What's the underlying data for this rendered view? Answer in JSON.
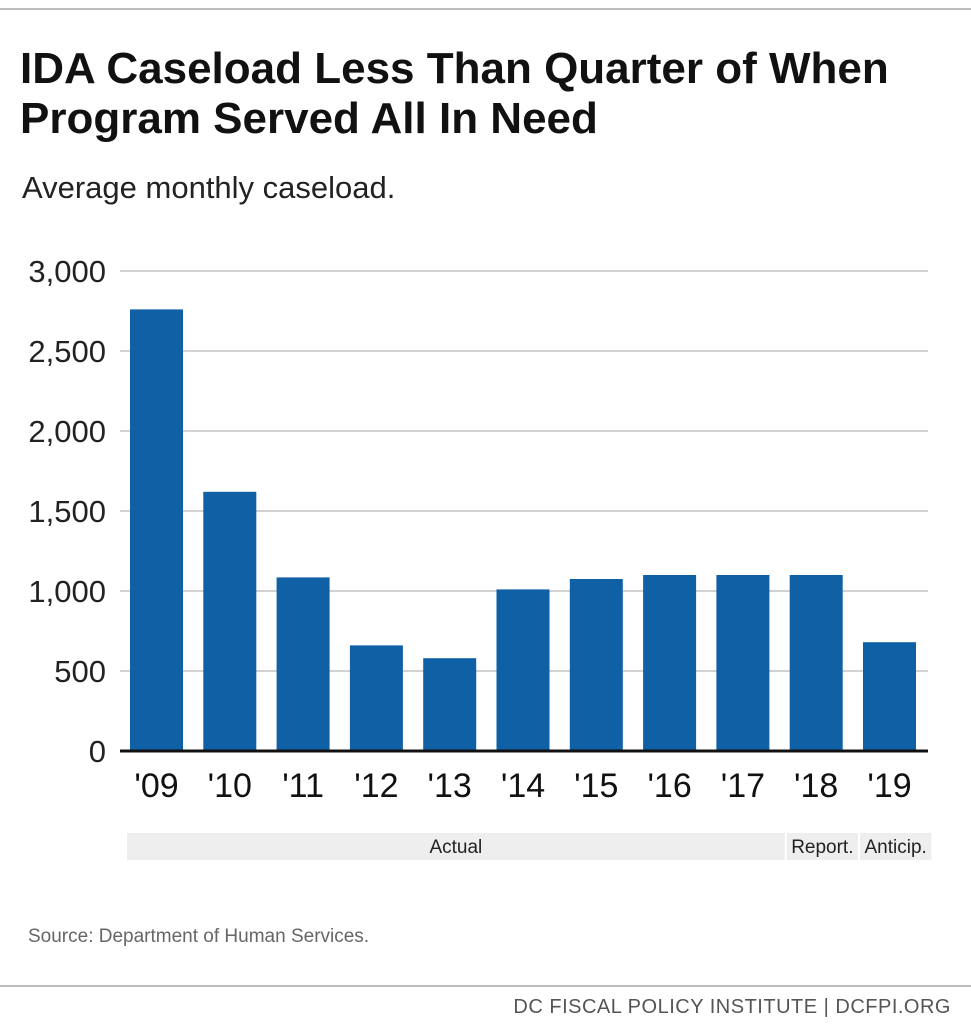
{
  "title": "IDA Caseload Less Than Quarter of When Program Served All In Need",
  "subtitle": "Average monthly caseload.",
  "source": "Source: Department of Human Services.",
  "footer": "DC FISCAL POLICY INSTITUTE | DCFPI.ORG",
  "colors": {
    "bar": "#1060a6"
  },
  "chart_data": {
    "type": "bar",
    "title": "IDA Caseload Less Than Quarter of When Program Served All In Need",
    "subtitle": "Average monthly caseload.",
    "categories": [
      "'09",
      "'10",
      "'11",
      "'12",
      "'13",
      "'14",
      "'15",
      "'16",
      "'17",
      "'18",
      "'19"
    ],
    "values": [
      2760,
      1620,
      1085,
      660,
      580,
      1010,
      1075,
      1100,
      1100,
      1100,
      680
    ],
    "ylim": [
      0,
      3000
    ],
    "yticks": [
      0,
      500,
      1000,
      1500,
      2000,
      2500,
      3000
    ],
    "ytick_labels": [
      "0",
      "500",
      "1,000",
      "1,500",
      "2,000",
      "2,500",
      "3,000"
    ],
    "xlabel": "",
    "ylabel": "",
    "grid": true,
    "bands": [
      {
        "label": "Actual",
        "from": "'09",
        "to": "'17"
      },
      {
        "label": "Report.",
        "from": "'18",
        "to": "'18"
      },
      {
        "label": "Anticip.",
        "from": "'19",
        "to": "'19"
      }
    ]
  }
}
